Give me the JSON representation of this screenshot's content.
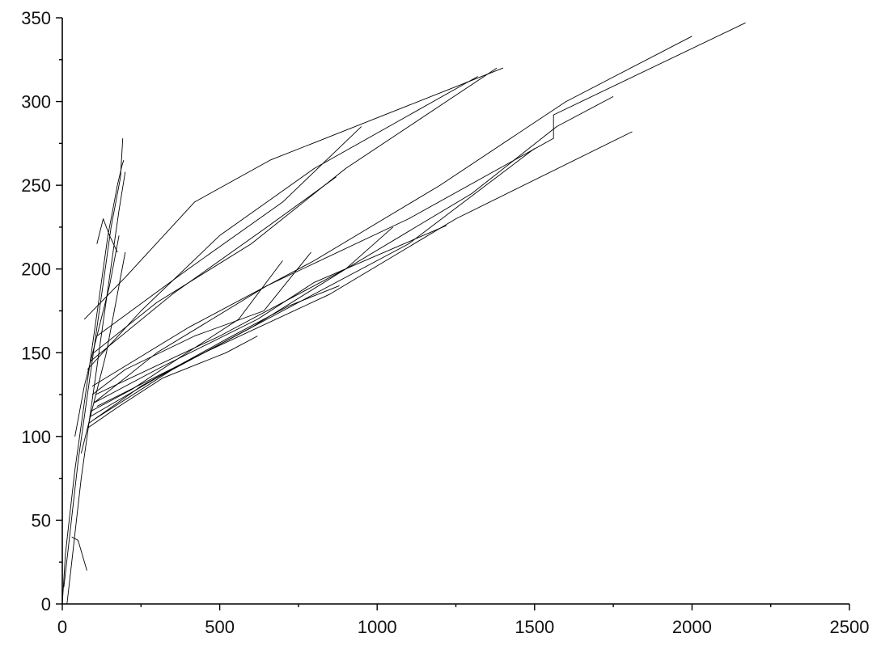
{
  "chart_data": {
    "type": "line",
    "title": "",
    "xlabel": "",
    "ylabel": "",
    "xlim": [
      0,
      2500
    ],
    "ylim": [
      0,
      350
    ],
    "x_ticks": [
      0,
      500,
      1000,
      1500,
      2000,
      2500
    ],
    "y_ticks": [
      0,
      50,
      100,
      150,
      200,
      250,
      300,
      350
    ],
    "x_tick_labels": [
      "0",
      "500",
      "1000",
      "1500",
      "2000",
      "2500"
    ],
    "y_tick_labels": [
      "0",
      "50",
      "100",
      "150",
      "200",
      "250",
      "300",
      "350"
    ],
    "grid": false,
    "legend": "none",
    "line_color": "#000000",
    "series": [
      {
        "x": [
          0,
          10,
          25,
          40,
          55,
          70,
          85,
          100,
          115,
          130,
          145,
          160,
          175,
          190,
          195
        ],
        "y": [
          0,
          30,
          55,
          80,
          100,
          120,
          140,
          160,
          180,
          200,
          220,
          235,
          250,
          262,
          265
        ]
      },
      {
        "x": [
          5,
          20,
          35,
          50,
          65,
          80,
          95,
          110,
          125,
          140,
          155,
          170,
          185,
          192
        ],
        "y": [
          10,
          35,
          60,
          85,
          105,
          125,
          145,
          165,
          185,
          205,
          225,
          240,
          255,
          278
        ]
      },
      {
        "x": [
          15,
          30,
          45,
          60,
          75,
          90,
          105,
          120,
          135,
          150,
          165,
          180,
          200
        ],
        "y": [
          0,
          25,
          50,
          75,
          95,
          115,
          135,
          155,
          175,
          195,
          215,
          235,
          258
        ]
      },
      {
        "x": [
          60,
          100,
          140,
          170,
          200
        ],
        "y": [
          90,
          120,
          150,
          180,
          210
        ]
      },
      {
        "x": [
          40,
          70,
          110,
          150,
          180
        ],
        "y": [
          100,
          130,
          160,
          190,
          220
        ]
      },
      {
        "x": [
          70,
          200,
          420,
          660,
          1400
        ],
        "y": [
          170,
          195,
          240,
          265,
          320
        ]
      },
      {
        "x": [
          80,
          250,
          500,
          800,
          1320
        ],
        "y": [
          140,
          175,
          220,
          260,
          315
        ]
      },
      {
        "x": [
          100,
          300,
          600,
          900,
          1100,
          1380
        ],
        "y": [
          150,
          180,
          215,
          260,
          285,
          320
        ]
      },
      {
        "x": [
          110,
          400,
          700,
          950
        ],
        "y": [
          160,
          200,
          240,
          285
        ]
      },
      {
        "x": [
          90,
          350,
          650,
          870
        ],
        "y": [
          145,
          185,
          225,
          255
        ]
      },
      {
        "x": [
          100,
          300,
          650,
          1100,
          1560,
          1560,
          2170
        ],
        "y": [
          120,
          150,
          190,
          230,
          278,
          292,
          347
        ]
      },
      {
        "x": [
          95,
          400,
          800,
          1200,
          1600,
          2000
        ],
        "y": [
          130,
          165,
          205,
          250,
          300,
          339
        ]
      },
      {
        "x": [
          105,
          500,
          900,
          1300,
          1570,
          1750
        ],
        "y": [
          125,
          160,
          200,
          245,
          285,
          303
        ]
      },
      {
        "x": [
          110,
          450,
          850,
          1250,
          1810
        ],
        "y": [
          118,
          150,
          185,
          230,
          282
        ]
      },
      {
        "x": [
          100,
          350,
          700,
          1100,
          1500
        ],
        "y": [
          110,
          140,
          175,
          215,
          272
        ]
      },
      {
        "x": [
          90,
          300,
          600,
          900,
          1050
        ],
        "y": [
          112,
          135,
          165,
          200,
          225
        ]
      },
      {
        "x": [
          100,
          320,
          620,
          800,
          1220
        ],
        "y": [
          120,
          142,
          170,
          192,
          226
        ]
      },
      {
        "x": [
          85,
          250,
          520,
          720,
          880
        ],
        "y": [
          108,
          130,
          158,
          178,
          190
        ]
      },
      {
        "x": [
          95,
          200,
          420,
          640,
          790
        ],
        "y": [
          125,
          140,
          160,
          175,
          210
        ]
      },
      {
        "x": [
          80,
          180,
          320,
          520,
          620
        ],
        "y": [
          105,
          118,
          135,
          150,
          160
        ]
      },
      {
        "x": [
          90,
          220,
          380,
          560,
          700
        ],
        "y": [
          115,
          128,
          148,
          170,
          205
        ]
      },
      {
        "x": [
          30,
          50,
          78
        ],
        "y": [
          40,
          38,
          20
        ]
      },
      {
        "x": [
          110,
          130,
          150,
          175
        ],
        "y": [
          215,
          230,
          220,
          210
        ]
      }
    ]
  }
}
